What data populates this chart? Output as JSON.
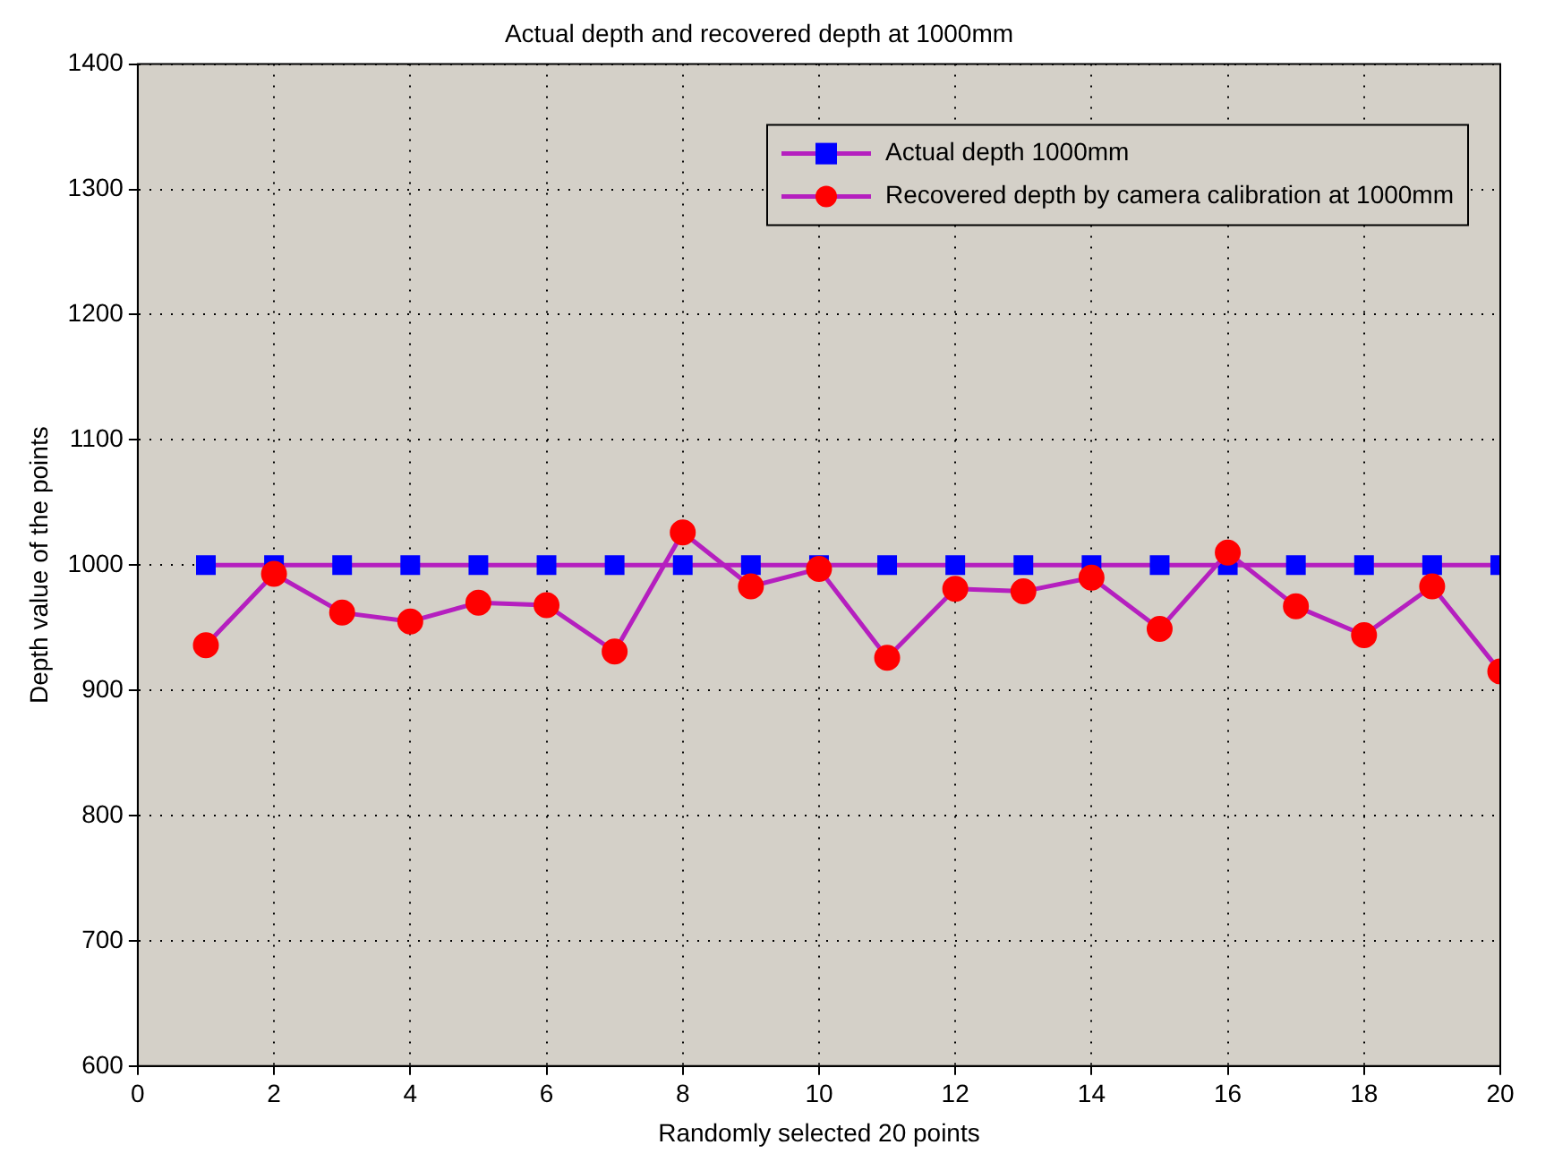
{
  "chart_data": {
    "type": "line",
    "title": "Actual depth and recovered depth at 1000mm",
    "xlabel": "Randomly selected 20 points",
    "ylabel": "Depth value of the points",
    "x": [
      1,
      2,
      3,
      4,
      5,
      6,
      7,
      8,
      9,
      10,
      11,
      12,
      13,
      14,
      15,
      16,
      17,
      18,
      19,
      20
    ],
    "series": [
      {
        "name": "Actual depth 1000mm",
        "color": "#b51fbf",
        "marker": "square",
        "colors": [
          "#0000ff",
          "#0000ff",
          "#0000ff",
          "#0000ff",
          "#0000ff",
          "#0000ff",
          "#0000ff",
          "#0000ff",
          "#0000ff",
          "#0000ff",
          "#0000ff",
          "#0000ff",
          "#0000ff",
          "#0000ff",
          "#0000ff",
          "#0000ff",
          "#0000ff",
          "#0000ff",
          "#0000ff",
          "#0000ff"
        ],
        "values": [
          1000,
          1000,
          1000,
          1000,
          1000,
          1000,
          1000,
          1000,
          1000,
          1000,
          1000,
          1000,
          1000,
          1000,
          1000,
          1000,
          1000,
          1000,
          1000,
          1000
        ]
      },
      {
        "name": "Recovered depth by camera calibration at 1000mm",
        "color": "#b51fbf",
        "marker": "circle",
        "colors": [
          "#ff0000",
          "#ff0000",
          "#ff0000",
          "#ff0000",
          "#ff0000",
          "#ff0000",
          "#ff0000",
          "#ff0000",
          "#ff0000",
          "#ff0000",
          "#ff0000",
          "#ff0000",
          "#ff0000",
          "#ff0000",
          "#ff0000",
          "#ff0000",
          "#ff0000",
          "#ff0000",
          "#ff0000",
          "#ff0000"
        ],
        "values": [
          936,
          993,
          962,
          955,
          970,
          968,
          931,
          1026,
          983,
          997,
          926,
          981,
          979,
          990,
          949,
          1010,
          967,
          944,
          983,
          915
        ]
      }
    ],
    "line_style": "solid",
    "xlim": [
      0,
      20
    ],
    "xticks": [
      0,
      2,
      4,
      6,
      8,
      10,
      12,
      14,
      16,
      18,
      20
    ],
    "ylim": [
      600,
      1400
    ],
    "yticks": [
      600,
      700,
      800,
      900,
      1000,
      1100,
      1200,
      1300,
      1400
    ],
    "grid": true,
    "legend": "top right"
  }
}
